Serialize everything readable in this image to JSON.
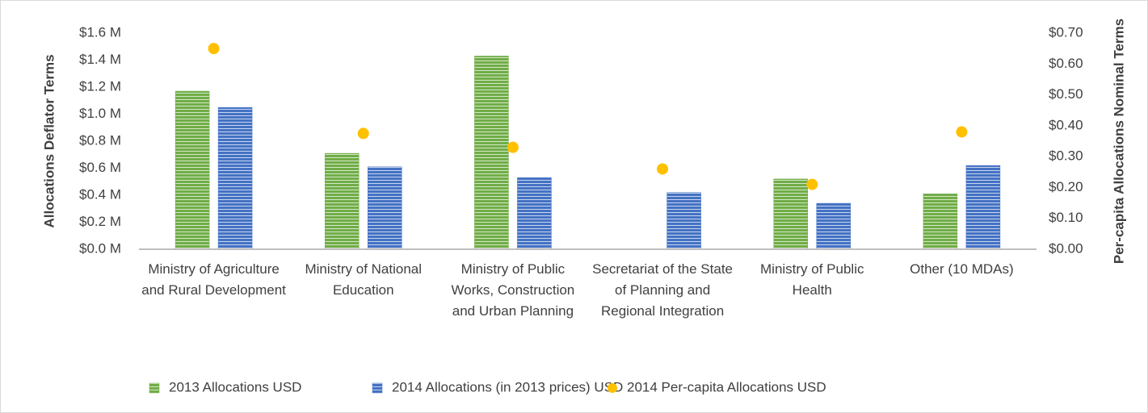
{
  "chart_data": {
    "type": "bar",
    "categories": [
      "Ministry of Agriculture and Rural Development",
      "Ministry of National Education",
      "Ministry of Public Works, Construction and Urban Planning",
      "Secretariat of the State of Planning and Regional Integration",
      "Ministry of Public Health",
      "Other (10 MDAs)"
    ],
    "series": [
      {
        "name": "2013 Allocations USD",
        "type": "bar",
        "color": "#70ad47",
        "values": [
          1170000,
          710000,
          1430000,
          null,
          520000,
          410000
        ]
      },
      {
        "name": "2014 Allocations (in 2013 prices) USD",
        "type": "bar",
        "color": "#4472c4",
        "values": [
          1050000,
          610000,
          530000,
          420000,
          340000,
          620000
        ]
      },
      {
        "name": "2014 Per-capita Allocations USD",
        "type": "scatter",
        "axis": "y2",
        "color": "#ffc000",
        "values": [
          0.65,
          0.375,
          0.33,
          0.26,
          0.21,
          0.38
        ]
      }
    ],
    "ylabel": "Allocations Deflator Terms",
    "y2label": "Per-capita Allocations Nominal Terms",
    "ylim": [
      0,
      1600000
    ],
    "yticks": [
      {
        "value": 0,
        "label": "$0.0 M"
      },
      {
        "value": 200000,
        "label": "$0.2 M"
      },
      {
        "value": 400000,
        "label": "$0.4 M"
      },
      {
        "value": 600000,
        "label": "$0.6 M"
      },
      {
        "value": 800000,
        "label": "$0.8 M"
      },
      {
        "value": 1000000,
        "label": "$1.0 M"
      },
      {
        "value": 1200000,
        "label": "$1.2 M"
      },
      {
        "value": 1400000,
        "label": "$1.4 M"
      },
      {
        "value": 1600000,
        "label": "$1.6 M"
      }
    ],
    "y2lim": [
      0,
      0.7
    ],
    "y2ticks": [
      {
        "value": 0,
        "label": "$0.00"
      },
      {
        "value": 0.1,
        "label": "$0.10"
      },
      {
        "value": 0.2,
        "label": "$0.20"
      },
      {
        "value": 0.3,
        "label": "$0.30"
      },
      {
        "value": 0.4,
        "label": "$0.40"
      },
      {
        "value": 0.5,
        "label": "$0.50"
      },
      {
        "value": 0.6,
        "label": "$0.60"
      },
      {
        "value": 0.7,
        "label": "$0.70"
      }
    ],
    "grid": false,
    "legend": "bottom"
  }
}
